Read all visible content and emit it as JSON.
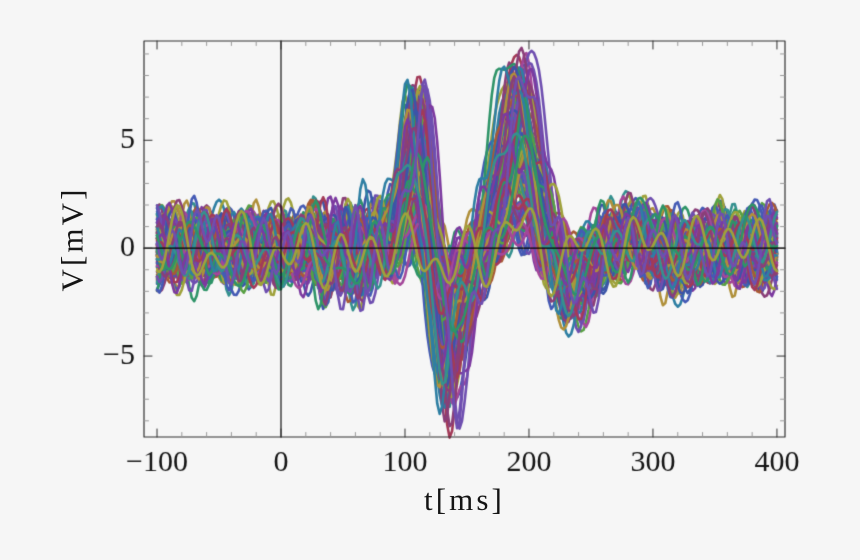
{
  "figure": {
    "background": "#f6f6f6",
    "frame_color": "#2f2f2f",
    "minor_tick_color": "#9a9a9a",
    "text_color": "#141414",
    "zero_line_color": "#000000"
  },
  "chart_data": {
    "type": "line",
    "title": "",
    "xlabel": "t[ms]",
    "ylabel": "V[mV]",
    "description": "Approximately 110 overlapping single-trial evoked-potential (EEG/ERP-style) voltage traces in random colors. Baseline noise of about +/-2 mV before stimulus at t=0, a positive deflection peaking near +7.5 mV at t~108 ms, a deep negative trough reaching about -8 mV at t~133 ms, a large positive peak reaching about +9 mV at t~190 ms, a small negative dip near t~230 ms, then return to +/-2 mV noise out to t=400 ms. Thin black axis lines cross at t=0 and V=0.",
    "x_data_range": [
      -100,
      400
    ],
    "xlim": [
      -110.5,
      406.5
    ],
    "ylim": [
      -8.75,
      9.6
    ],
    "x_major_ticks": [
      -100,
      0,
      100,
      200,
      300,
      400
    ],
    "x_tick_labels": [
      "−100",
      "0",
      "100",
      "200",
      "300",
      "400"
    ],
    "x_minor_step": 20,
    "y_major_ticks": [
      -5,
      0,
      5
    ],
    "y_tick_labels": [
      "−5",
      "0",
      "5"
    ],
    "y_minor_step": 1,
    "grid": false,
    "legend": null,
    "axes_origin": [
      0,
      0
    ],
    "n_traces": 110,
    "sample_step_ms": 2,
    "seed": 11,
    "line_width": 2.6,
    "mean_waveform": [
      [
        -120,
        0
      ],
      [
        -100,
        0.1
      ],
      [
        -80,
        -0.1
      ],
      [
        -60,
        0.1
      ],
      [
        -40,
        -0.1
      ],
      [
        -20,
        0.05
      ],
      [
        0,
        0
      ],
      [
        14,
        -0.4
      ],
      [
        27,
        0.7
      ],
      [
        39,
        -1.2
      ],
      [
        51,
        1.0
      ],
      [
        62,
        -1.4
      ],
      [
        73,
        0.9
      ],
      [
        83,
        0.1
      ],
      [
        91,
        1.6
      ],
      [
        100,
        4.0
      ],
      [
        107,
        6.8
      ],
      [
        113,
        5.4
      ],
      [
        120,
        1.2
      ],
      [
        127,
        -3.8
      ],
      [
        134,
        -7.2
      ],
      [
        141,
        -5.0
      ],
      [
        149,
        -2.0
      ],
      [
        157,
        -0.9
      ],
      [
        164,
        0.5
      ],
      [
        173,
        3.2
      ],
      [
        182,
        6.6
      ],
      [
        190,
        8.4
      ],
      [
        198,
        7.0
      ],
      [
        206,
        4.2
      ],
      [
        214,
        1.4
      ],
      [
        222,
        -1.0
      ],
      [
        231,
        -2.4
      ],
      [
        243,
        -1.6
      ],
      [
        255,
        -0.6
      ],
      [
        268,
        0.5
      ],
      [
        283,
        0.9
      ],
      [
        298,
        0.4
      ],
      [
        314,
        -0.5
      ],
      [
        330,
        -0.4
      ],
      [
        347,
        0.3
      ],
      [
        364,
        0.1
      ],
      [
        381,
        -0.2
      ],
      [
        400,
        0.1
      ],
      [
        420,
        0
      ]
    ],
    "trial_model": {
      "amplitude_min": 0.12,
      "amplitude_spread": 0.95,
      "amplitude_exponent": 1.3,
      "latency_jitter_ms": 9,
      "noise_components": [
        {
          "period_base": 18,
          "period_spread": 14,
          "amp_base": 0.6,
          "amp_spread": 0.5
        },
        {
          "period_base": 30,
          "period_spread": 25,
          "amp_base": 0.4,
          "amp_spread": 0.4
        },
        {
          "period_base": 55,
          "period_spread": 40,
          "amp_base": 0.3,
          "amp_spread": 0.3
        }
      ],
      "drift_amp": 0.6,
      "drift_period": 700
    },
    "palette": [
      "#2e7fa3",
      "#a33a58",
      "#2e9468",
      "#7c3aa0",
      "#3c55a8",
      "#a85a35",
      "#9fa23b",
      "#58a044",
      "#a4479a",
      "#35918f",
      "#6f4fb0",
      "#b0903a",
      "#455bb5",
      "#8a3f78"
    ]
  }
}
